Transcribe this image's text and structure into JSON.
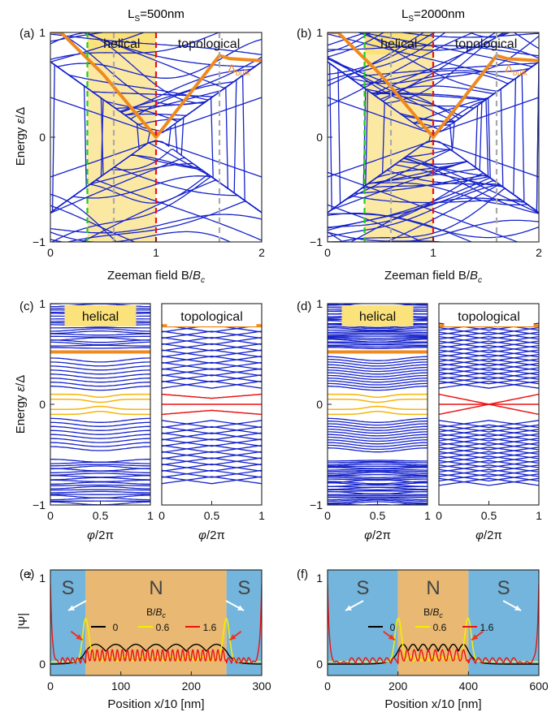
{
  "figure": {
    "column_titles": [
      {
        "main": "L",
        "sub": "S",
        "rest": "=500nm"
      },
      {
        "main": "L",
        "sub": "S",
        "rest": "=2000nm"
      }
    ]
  },
  "chart_data": [
    {
      "panel": "(a)",
      "type": "line",
      "xlabel": "Zeeman field B/B_c",
      "ylabel": "Energy ε/Δ",
      "xlim": [
        0,
        2
      ],
      "ylim": [
        -1,
        1
      ],
      "xticks": [
        "0",
        "1",
        "2"
      ],
      "yticks": [
        "−1",
        "0",
        "1"
      ],
      "region_labels": [
        "helical",
        "topological"
      ],
      "helical_region": [
        0.35,
        1.0
      ],
      "vlines": [
        {
          "x": 0.35,
          "color": "#22cc22"
        },
        {
          "x": 0.6,
          "color": "#aaaaaa"
        },
        {
          "x": 1.0,
          "color": "#ee1111"
        },
        {
          "x": 1.6,
          "color": "#aaaaaa"
        }
      ],
      "gap_label": {
        "main": "Δ",
        "sub": "bulk"
      },
      "bulk_gap": {
        "x": [
          0,
          0.1,
          0.5,
          1.0,
          1.6,
          1.7,
          2.0
        ],
        "y": [
          1.0,
          1.0,
          0.6,
          0.0,
          0.78,
          0.75,
          0.73
        ]
      },
      "level_count": 44
    },
    {
      "panel": "(b)",
      "type": "line",
      "xlabel": "Zeeman field B/B_c",
      "ylabel": "",
      "xlim": [
        0,
        2
      ],
      "ylim": [
        -1,
        1
      ],
      "xticks": [
        "0",
        "1",
        "2"
      ],
      "yticks": [
        "−1",
        "0",
        "1"
      ],
      "region_labels": [
        "helical",
        "topological"
      ],
      "helical_region": [
        0.35,
        1.0
      ],
      "vlines": [
        {
          "x": 0.35,
          "color": "#22cc22"
        },
        {
          "x": 0.6,
          "color": "#aaaaaa"
        },
        {
          "x": 1.0,
          "color": "#ee1111"
        },
        {
          "x": 1.6,
          "color": "#aaaaaa"
        }
      ],
      "gap_label": {
        "main": "Δ",
        "sub": "bulk"
      },
      "bulk_gap": {
        "x": [
          0,
          0.1,
          0.5,
          1.0,
          1.6,
          1.7,
          2.0
        ],
        "y": [
          1.0,
          1.0,
          0.6,
          0.0,
          0.78,
          0.75,
          0.73
        ]
      },
      "level_count": 70
    },
    {
      "panel": "(c)",
      "type": "line",
      "xlabel": "φ/2π",
      "ylabel": "Energy ε/Δ",
      "xlim": [
        0,
        1
      ],
      "ylim": [
        -1,
        1
      ],
      "subpanels": [
        {
          "label": "helical",
          "gap": 0.52,
          "low_color": "#f5b50a",
          "low_levels": [
            0.1,
            0.05,
            -0.05,
            -0.1
          ]
        },
        {
          "label": "topological",
          "gap": 0.78,
          "low_color": "#ee1111",
          "low_levels": [
            0.1,
            0.0,
            -0.1
          ]
        }
      ],
      "xticks": [
        "0",
        "0.5",
        "1"
      ],
      "yticks": [
        "−1",
        "0",
        "1"
      ]
    },
    {
      "panel": "(d)",
      "type": "line",
      "xlabel": "φ/2π",
      "ylabel": "",
      "xlim": [
        0,
        1
      ],
      "ylim": [
        -1,
        1
      ],
      "subpanels": [
        {
          "label": "helical",
          "gap": 0.52,
          "low_color": "#f5b50a",
          "low_levels": [
            0.1,
            0.05,
            -0.05,
            -0.1
          ]
        },
        {
          "label": "topological",
          "gap": 0.78,
          "low_color": "#ee1111",
          "low_levels": [
            0.1,
            0.0,
            -0.1
          ]
        }
      ],
      "xticks": [
        "0",
        "0.5",
        "1"
      ],
      "yticks": [
        "−1",
        "0",
        "1"
      ]
    },
    {
      "panel": "(e)",
      "type": "line",
      "xlabel": "Position x/10 [nm]",
      "ylabel": "|Ψ|²",
      "xlim": [
        0,
        300
      ],
      "xticks": [
        "0",
        "100",
        "200",
        "300"
      ],
      "yticks": [
        "0",
        "1"
      ],
      "regions": [
        {
          "label": "S",
          "x": [
            0,
            50
          ]
        },
        {
          "label": "N",
          "x": [
            50,
            250
          ]
        },
        {
          "label": "S",
          "x": [
            250,
            300
          ]
        }
      ],
      "legend_title": "B/B_c",
      "series": [
        {
          "name": "0",
          "color": "#000000"
        },
        {
          "name": "0.6",
          "color": "#f2ee00"
        },
        {
          "name": "1.6",
          "color": "#ee1111"
        }
      ]
    },
    {
      "panel": "(f)",
      "type": "line",
      "xlabel": "Position x/10 [nm]",
      "ylabel": "",
      "xlim": [
        0,
        600
      ],
      "xticks": [
        "0",
        "200",
        "400",
        "600"
      ],
      "yticks": [
        "0",
        "1"
      ],
      "regions": [
        {
          "label": "S",
          "x": [
            0,
            200
          ]
        },
        {
          "label": "N",
          "x": [
            200,
            400
          ]
        },
        {
          "label": "S",
          "x": [
            400,
            600
          ]
        }
      ],
      "legend_title": "B/B_c",
      "series": [
        {
          "name": "0",
          "color": "#000000"
        },
        {
          "name": "0.6",
          "color": "#f2ee00"
        },
        {
          "name": "1.6",
          "color": "#ee1111"
        }
      ]
    }
  ],
  "colors": {
    "level": "#1522cc",
    "gap": "#f08a1c",
    "helical_fill": "#fbe9a3",
    "s_fill": "#73b5dc",
    "n_fill": "#e9b872"
  }
}
